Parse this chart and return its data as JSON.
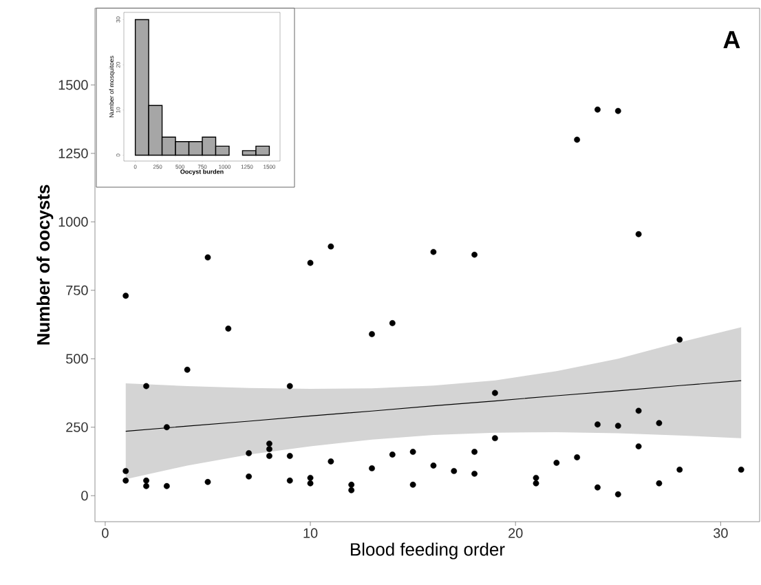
{
  "chart_data": [
    {
      "type": "scatter",
      "xlabel": "Blood feeding order",
      "ylabel": "Number of oocysts",
      "annotations": [
        "A"
      ],
      "xlim": [
        -0.5,
        31.9
      ],
      "ylim": [
        -95,
        1780
      ],
      "xticks": [
        0,
        10,
        20,
        30
      ],
      "yticks": [
        0,
        250,
        500,
        750,
        1000,
        1250,
        1500
      ],
      "grid": false,
      "series": [
        {
          "type": "scatter",
          "color": "#000000",
          "marker": "circle",
          "x": [
            1,
            1,
            1,
            2,
            2,
            2,
            3,
            3,
            4,
            5,
            5,
            6,
            7,
            7,
            8,
            8,
            8,
            9,
            9,
            9,
            10,
            10,
            10,
            11,
            11,
            12,
            12,
            13,
            13,
            14,
            14,
            15,
            15,
            16,
            16,
            17,
            18,
            18,
            18,
            19,
            19,
            21,
            21,
            22,
            23,
            23,
            24,
            24,
            24,
            25,
            25,
            25,
            26,
            26,
            26,
            27,
            27,
            28,
            28,
            31
          ],
          "values": [
            730,
            90,
            55,
            400,
            55,
            35,
            250,
            35,
            460,
            870,
            50,
            610,
            155,
            70,
            190,
            170,
            145,
            400,
            145,
            55,
            850,
            65,
            45,
            910,
            125,
            40,
            20,
            590,
            100,
            630,
            150,
            160,
            40,
            890,
            110,
            90,
            880,
            160,
            80,
            375,
            210,
            65,
            45,
            120,
            1300,
            140,
            1410,
            260,
            30,
            1405,
            255,
            5,
            955,
            310,
            180,
            265,
            45,
            570,
            95,
            95
          ]
        },
        {
          "type": "line",
          "color": "#000000",
          "marker": "none",
          "x": [
            1,
            4,
            7,
            10,
            13,
            16,
            19,
            22,
            25,
            28,
            31
          ],
          "values": [
            235,
            254,
            272,
            291,
            309,
            328,
            346,
            365,
            383,
            402,
            420
          ],
          "lower": [
            60,
            110,
            150,
            180,
            205,
            222,
            230,
            232,
            228,
            220,
            210
          ],
          "upper": [
            410,
            400,
            393,
            390,
            392,
            402,
            421,
            455,
            500,
            560,
            615
          ]
        }
      ]
    },
    {
      "type": "histogram",
      "xlabel": "Oocyst burden",
      "ylabel": "Number of mosquitoes",
      "bins": [
        0,
        150,
        300,
        450,
        600,
        750,
        900,
        1050,
        1200,
        1350,
        1500
      ],
      "values": [
        30,
        11,
        4,
        3,
        3,
        4,
        2,
        0,
        1,
        2
      ],
      "color": "#a6a6a6",
      "xlim": [
        -128,
        1620
      ],
      "ylim": [
        -1.3,
        31.6
      ],
      "xticks": [
        0,
        250,
        500,
        750,
        1000,
        1250,
        1500
      ],
      "yticks": [
        0,
        10,
        20,
        30
      ],
      "grid": false
    }
  ]
}
